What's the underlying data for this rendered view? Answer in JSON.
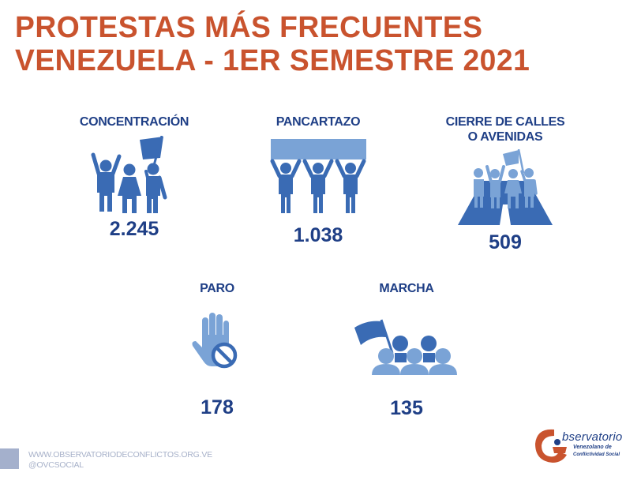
{
  "header": {
    "title_line1": "PROTESTAS MÁS FRECUENTES",
    "title_line2": "VENEZUELA - 1ER SEMESTRE 2021"
  },
  "colors": {
    "title": "#c9532e",
    "text_dark_blue": "#1f3f86",
    "icon_blue": "#3a6bb4",
    "icon_light_blue": "#7aa3d6",
    "footer_gray": "#a7b1c9"
  },
  "protests": [
    {
      "label": "CONCENTRACIÓN",
      "value": "2.245",
      "icon": "people-flag-icon"
    },
    {
      "label": "PANCARTAZO",
      "value": "1.038",
      "icon": "people-banner-icon"
    },
    {
      "label_line1": "CIERRE DE CALLES",
      "label_line2": "O AVENIDAS",
      "value": "509",
      "icon": "road-blockade-icon"
    },
    {
      "label": "PARO",
      "value": "178",
      "icon": "stop-hand-icon"
    },
    {
      "label": "MARCHA",
      "value": "135",
      "icon": "march-crowd-icon"
    }
  ],
  "footer": {
    "website": "WWW.OBSERVATORIODECONFLICTOS.ORG.VE",
    "social": "@OVCSOCIAL"
  },
  "logo": {
    "main": "bservatorio",
    "sub1": "Venezolano de",
    "sub2": "Conflictividad Social"
  }
}
